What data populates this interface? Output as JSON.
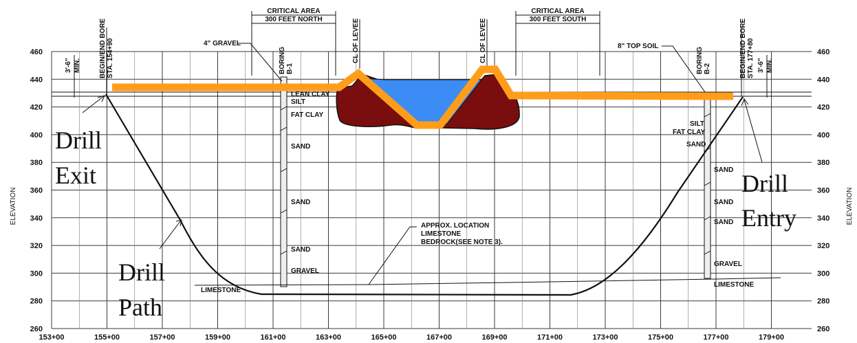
{
  "axes": {
    "y_label": "ELEVATION",
    "y_ticks": [
      "460",
      "440",
      "420",
      "400",
      "380",
      "360",
      "340",
      "320",
      "300",
      "280",
      "260"
    ],
    "x_ticks": [
      "153+00",
      "155+00",
      "157+00",
      "159+00",
      "161+00",
      "163+00",
      "165+00",
      "167+00",
      "169+00",
      "171+00",
      "173+00",
      "175+00",
      "177+00",
      "179+00"
    ]
  },
  "critical_north": {
    "title": "CRITICAL AREA",
    "sub": "300 FEET NORTH"
  },
  "critical_south": {
    "title": "CRITICAL AREA",
    "sub": "300 FEET SOUTH"
  },
  "stations": {
    "left_a": "BEGIN/END BORE",
    "left_b": "STA. 154+90",
    "right_a": "BEGIN/END BORE",
    "right_b": "STA. 177+80"
  },
  "clearance": {
    "left_a": "3'-6\"",
    "left_b": "MIN.",
    "right_a": "3'-6\"",
    "right_b": "MIN."
  },
  "levee_1": "CL OF LEVEE",
  "levee_2": "CL OF LEVEE",
  "boring_1": {
    "a": "BORING",
    "b": "B-1"
  },
  "boring_2": {
    "a": "BORING",
    "b": "B-2"
  },
  "gravel_top": "4\" GRAVEL",
  "topsoil": "8\" TOP SOIL",
  "soil_b1": [
    "LEAN CLAY",
    "SILT",
    "FAT CLAY",
    "SAND",
    "SAND",
    "SAND",
    "GRAVEL"
  ],
  "soil_b2": [
    "SILT",
    "FAT CLAY",
    "SAND",
    "SAND",
    "SAND",
    "SAND",
    "GRAVEL"
  ],
  "limestone_left": "LIMESTONE",
  "limestone_right": "LIMESTONE",
  "bedrock_note": [
    "APPROX. LOCATION",
    "LIMESTONE",
    "BEDROCK(SEE NOTE 3)."
  ],
  "callouts": {
    "exit_1": "Drill",
    "exit_2": "Exit",
    "entry_1": "Drill",
    "entry_2": "Entry",
    "path_1": "Drill",
    "path_2": "Path"
  },
  "colors": {
    "orange": "#ff9d1a",
    "levee": "#7a0d0d",
    "water": "#3b8cf5"
  }
}
